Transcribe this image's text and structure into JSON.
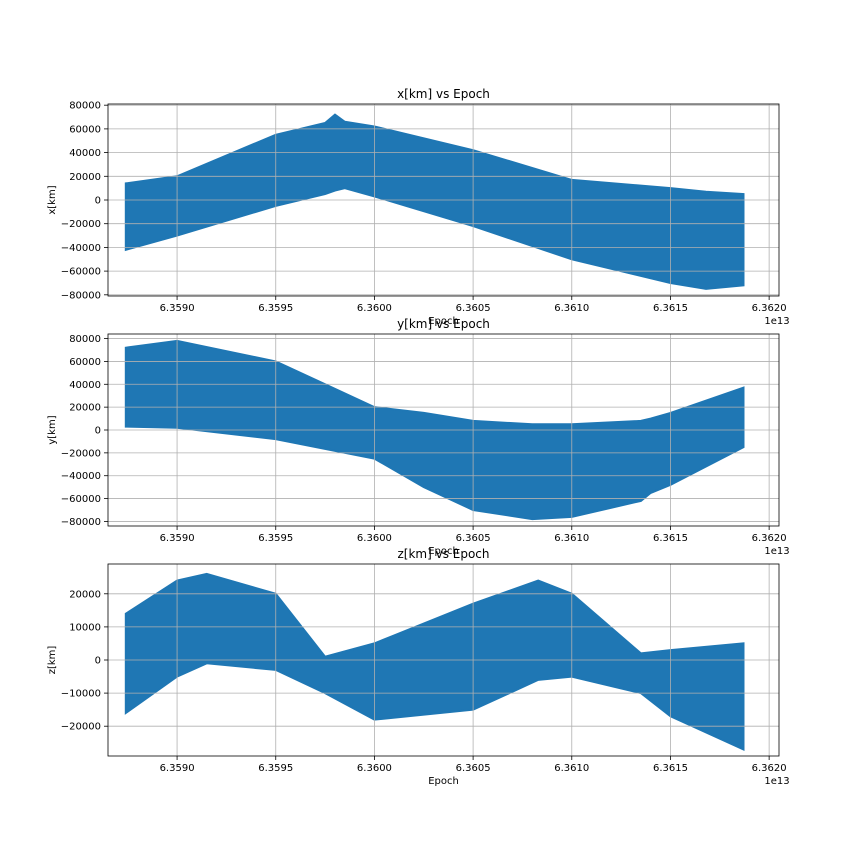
{
  "colors": {
    "series": "#1f77b4",
    "grid": "#b0b0b0",
    "axis": "#000000",
    "background": "#ffffff"
  },
  "chart_data": [
    {
      "type": "scatter",
      "title": "x[km] vs Epoch",
      "xlabel": "Epoch",
      "ylabel": "x[km]",
      "x_offset_label": "1e13",
      "grid": true,
      "xlim": [
        6.35865,
        6.36205
      ],
      "ylim": [
        -81000,
        81000
      ],
      "xticks": [
        {
          "value": 6.359,
          "label": "6.3590"
        },
        {
          "value": 6.3595,
          "label": "6.3595"
        },
        {
          "value": 6.36,
          "label": "6.3600"
        },
        {
          "value": 6.3605,
          "label": "6.3605"
        },
        {
          "value": 6.361,
          "label": "6.3610"
        },
        {
          "value": 6.3615,
          "label": "6.3615"
        },
        {
          "value": 6.362,
          "label": "6.3620"
        }
      ],
      "yticks": [
        {
          "value": 80000,
          "label": "80000"
        },
        {
          "value": 60000,
          "label": "60000"
        },
        {
          "value": 40000,
          "label": "40000"
        },
        {
          "value": 20000,
          "label": "20000"
        },
        {
          "value": 0,
          "label": "0"
        },
        {
          "value": -20000,
          "label": "−20000"
        },
        {
          "value": -40000,
          "label": "−40000"
        },
        {
          "value": -60000,
          "label": "−60000"
        },
        {
          "value": -80000,
          "label": "−80000"
        }
      ],
      "x": [
        6.35874,
        6.359,
        6.3595,
        6.35975,
        6.3598,
        6.35985,
        6.36,
        6.3605,
        6.361,
        6.3615,
        6.36168,
        6.36187
      ],
      "y_upper": [
        14000,
        20000,
        55000,
        65000,
        72000,
        66000,
        62000,
        42000,
        17000,
        10000,
        7000,
        5000
      ],
      "y_lower": [
        -42000,
        -30000,
        -5000,
        5000,
        8000,
        10000,
        3000,
        -22000,
        -50000,
        -70000,
        -75000,
        -72000
      ]
    },
    {
      "type": "scatter",
      "title": "y[km] vs Epoch",
      "xlabel": "Epoch",
      "ylabel": "y[km]",
      "x_offset_label": "1e13",
      "grid": true,
      "xlim": [
        6.35865,
        6.36205
      ],
      "ylim": [
        -84000,
        84000
      ],
      "xticks": [
        {
          "value": 6.359,
          "label": "6.3590"
        },
        {
          "value": 6.3595,
          "label": "6.3595"
        },
        {
          "value": 6.36,
          "label": "6.3600"
        },
        {
          "value": 6.3605,
          "label": "6.3605"
        },
        {
          "value": 6.361,
          "label": "6.3610"
        },
        {
          "value": 6.3615,
          "label": "6.3615"
        },
        {
          "value": 6.362,
          "label": "6.3620"
        }
      ],
      "yticks": [
        {
          "value": 80000,
          "label": "80000"
        },
        {
          "value": 60000,
          "label": "60000"
        },
        {
          "value": 40000,
          "label": "40000"
        },
        {
          "value": 20000,
          "label": "20000"
        },
        {
          "value": 0,
          "label": "0"
        },
        {
          "value": -20000,
          "label": "−20000"
        },
        {
          "value": -40000,
          "label": "−40000"
        },
        {
          "value": -60000,
          "label": "−60000"
        },
        {
          "value": -80000,
          "label": "−80000"
        }
      ],
      "x": [
        6.35874,
        6.359,
        6.3595,
        6.36,
        6.36025,
        6.3605,
        6.3608,
        6.361,
        6.36135,
        6.3614,
        6.3615,
        6.36187
      ],
      "y_upper": [
        72000,
        78000,
        60000,
        20000,
        15000,
        8000,
        5000,
        5000,
        8000,
        10000,
        15000,
        37000
      ],
      "y_lower": [
        3000,
        2000,
        -8000,
        -25000,
        -50000,
        -70000,
        -78000,
        -76000,
        -62000,
        -55000,
        -48000,
        -15000
      ]
    },
    {
      "type": "scatter",
      "title": "z[km] vs Epoch",
      "xlabel": "Epoch",
      "ylabel": "z[km]",
      "x_offset_label": "1e13",
      "grid": true,
      "xlim": [
        6.35865,
        6.36205
      ],
      "ylim": [
        -29000,
        29000
      ],
      "xticks": [
        {
          "value": 6.359,
          "label": "6.3590"
        },
        {
          "value": 6.3595,
          "label": "6.3595"
        },
        {
          "value": 6.36,
          "label": "6.3600"
        },
        {
          "value": 6.3605,
          "label": "6.3605"
        },
        {
          "value": 6.361,
          "label": "6.3610"
        },
        {
          "value": 6.3615,
          "label": "6.3615"
        },
        {
          "value": 6.362,
          "label": "6.3620"
        }
      ],
      "yticks": [
        {
          "value": 20000,
          "label": "20000"
        },
        {
          "value": 10000,
          "label": "10000"
        },
        {
          "value": 0,
          "label": "0"
        },
        {
          "value": -10000,
          "label": "−10000"
        },
        {
          "value": -20000,
          "label": "−20000"
        }
      ],
      "x": [
        6.35874,
        6.359,
        6.35915,
        6.3595,
        6.35975,
        6.36,
        6.3605,
        6.36083,
        6.361,
        6.36135,
        6.3615,
        6.36187
      ],
      "y_upper": [
        14000,
        24000,
        26000,
        20000,
        1000,
        5000,
        17000,
        24000,
        20000,
        2000,
        3000,
        5000
      ],
      "y_lower": [
        -16000,
        -5000,
        -1000,
        -3000,
        -10000,
        -18000,
        -15000,
        -6000,
        -5000,
        -10000,
        -17000,
        -27000
      ]
    }
  ]
}
